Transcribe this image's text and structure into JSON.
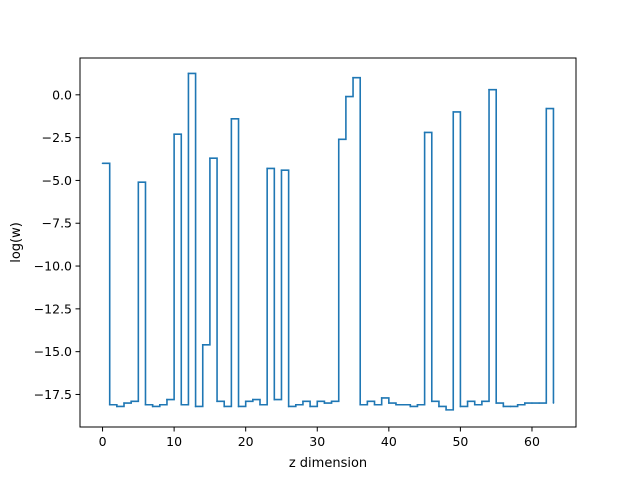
{
  "chart_data": {
    "type": "line",
    "drawstyle": "steps-post",
    "title": "",
    "xlabel": "z dimension",
    "ylabel": "log(w)",
    "xlim": [
      -3.15,
      66.15
    ],
    "ylim": [
      -19.4,
      2.15
    ],
    "xticks": [
      0,
      10,
      20,
      30,
      40,
      50,
      60
    ],
    "yticks": [
      0.0,
      -2.5,
      -5.0,
      -7.5,
      -10.0,
      -12.5,
      -15.0,
      -17.5
    ],
    "ytick_labels": [
      "0.0",
      "−2.5",
      "−5.0",
      "−7.5",
      "−10.0",
      "−12.5",
      "−15.0",
      "−17.5"
    ],
    "grid": false,
    "series": [
      {
        "color": "#1f77b4",
        "x": [
          0,
          1,
          2,
          3,
          4,
          5,
          6,
          7,
          8,
          9,
          10,
          11,
          12,
          13,
          14,
          15,
          16,
          17,
          18,
          19,
          20,
          21,
          22,
          23,
          24,
          25,
          26,
          27,
          28,
          29,
          30,
          31,
          32,
          33,
          34,
          35,
          36,
          37,
          38,
          39,
          40,
          41,
          42,
          43,
          44,
          45,
          46,
          47,
          48,
          49,
          50,
          51,
          52,
          53,
          54,
          55,
          56,
          57,
          58,
          59,
          60,
          61,
          62,
          63
        ],
        "values": [
          -4.0,
          -18.1,
          -18.2,
          -18.0,
          -17.9,
          -5.1,
          -18.1,
          -18.2,
          -18.1,
          -17.8,
          -2.3,
          -18.1,
          1.25,
          -18.2,
          -14.6,
          -3.7,
          -17.9,
          -18.2,
          -1.4,
          -18.2,
          -17.9,
          -17.8,
          -18.1,
          -4.3,
          -17.8,
          -4.4,
          -18.2,
          -18.1,
          -17.9,
          -18.2,
          -17.9,
          -18.0,
          -17.9,
          -2.6,
          -0.1,
          1.0,
          -18.1,
          -17.9,
          -18.1,
          -17.7,
          -18.0,
          -18.1,
          -18.1,
          -18.2,
          -18.1,
          -2.2,
          -17.9,
          -18.2,
          -18.4,
          -1.0,
          -18.2,
          -17.9,
          -18.1,
          -17.9,
          0.3,
          -18.0,
          -18.2,
          -18.2,
          -18.1,
          -18.0,
          -18.0,
          -18.0,
          -0.8,
          -18.0
        ]
      }
    ]
  }
}
